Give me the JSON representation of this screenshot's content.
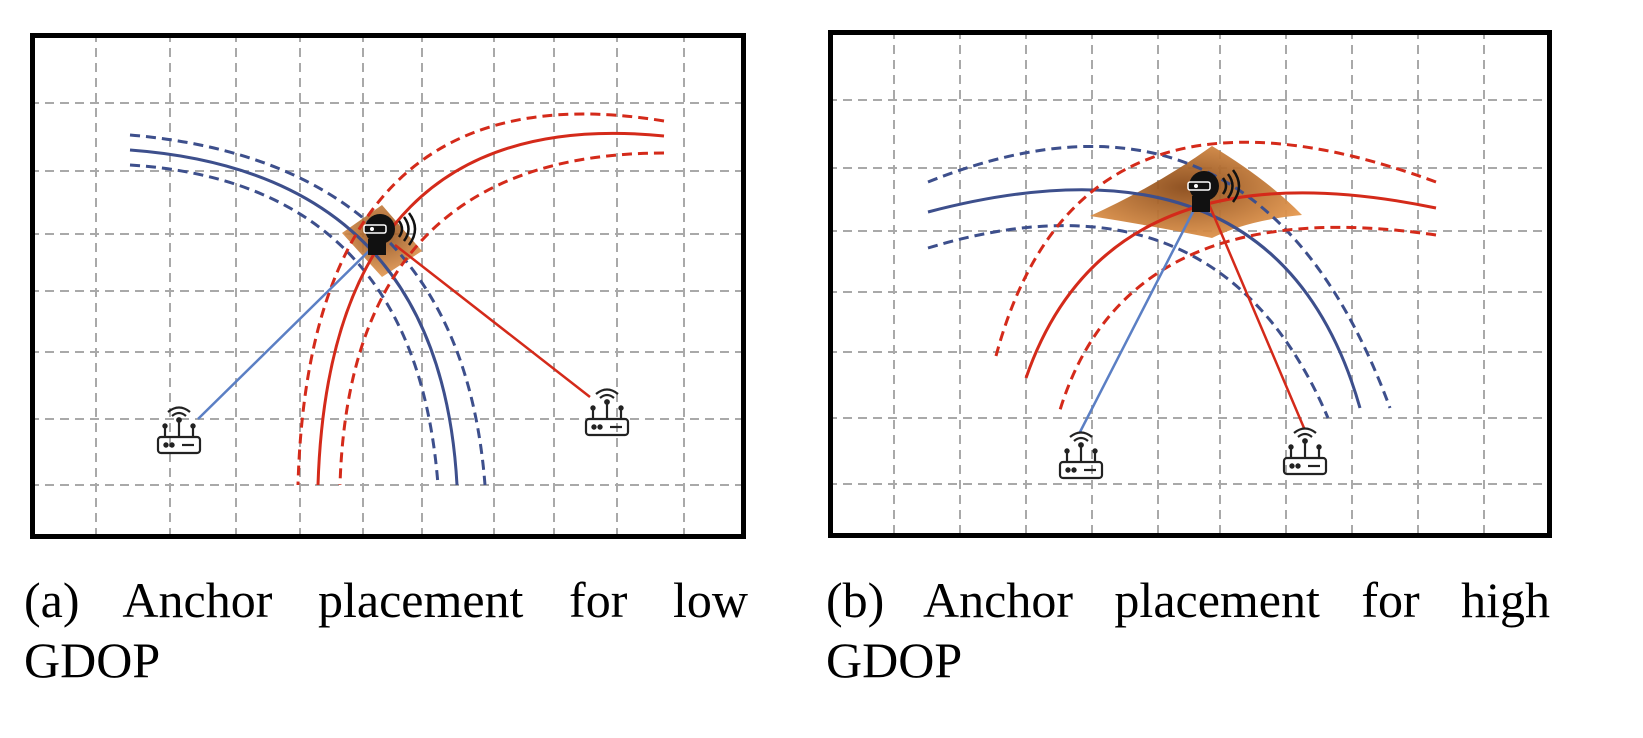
{
  "figure": {
    "panels": [
      {
        "id": "a",
        "caption_label": "(a)",
        "caption_text": "Anchor placement for low GDOP"
      },
      {
        "id": "b",
        "caption_label": "(b)",
        "caption_text": "Anchor placement for high GDOP"
      }
    ],
    "colors": {
      "grid": "#a9a9a9",
      "frame": "#000000",
      "anchor_blue": "#3d4f8c",
      "anchor_blue_link": "#5b7fc4",
      "anchor_red": "#d42a1a",
      "uncertainty_region": "#c8732c"
    },
    "icons": [
      "router-icon",
      "vr-headset-user-icon"
    ]
  }
}
